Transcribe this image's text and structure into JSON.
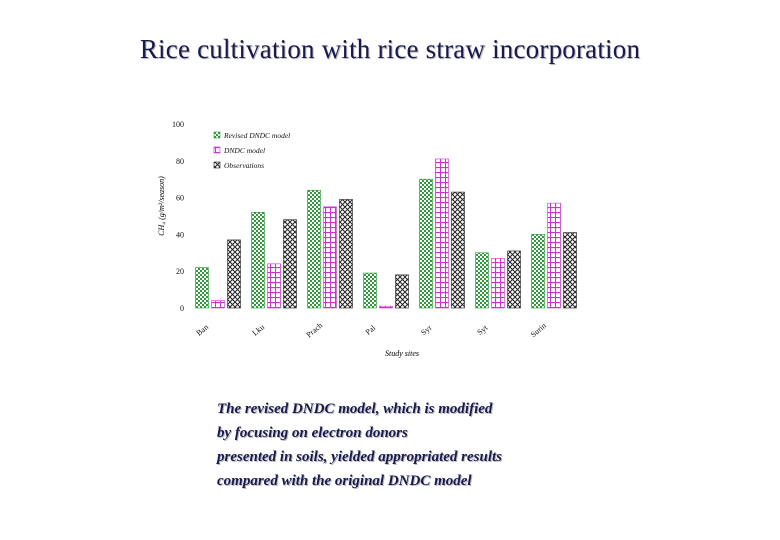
{
  "slide": {
    "title": "Rice cultivation with rice straw incorporation",
    "note_lines": [
      "The revised DNDC model, which is modified",
      "by focusing on electron donors",
      "presented in soils, yielded appropriated results",
      "compared with the original DNDC model"
    ]
  },
  "chart_data": {
    "type": "bar",
    "categories": [
      "Ban",
      "Lku",
      "Prach",
      "Pal",
      "Syr",
      "Syt",
      "Surin"
    ],
    "series": [
      {
        "name": "Revised DNDC model",
        "values": [
          22,
          52,
          64,
          19,
          70,
          30,
          40
        ],
        "color": "#2e9a3a",
        "pattern": "green-check"
      },
      {
        "name": "DNDC model",
        "values": [
          4,
          24,
          55,
          1,
          81,
          27,
          57
        ],
        "color": "#cc33cc",
        "pattern": "pink-grid"
      },
      {
        "name": "Observations",
        "values": [
          37,
          48,
          59,
          18,
          63,
          31,
          41
        ],
        "color": "#222222",
        "pattern": "black-lattice"
      }
    ],
    "xlabel": "Study sites",
    "ylabel": "CH₄ (g/m²/season)",
    "ylim": [
      0,
      100
    ],
    "yticks": [
      0,
      20,
      40,
      60,
      80,
      100
    ],
    "grid": false,
    "legend_position": "top-left"
  }
}
